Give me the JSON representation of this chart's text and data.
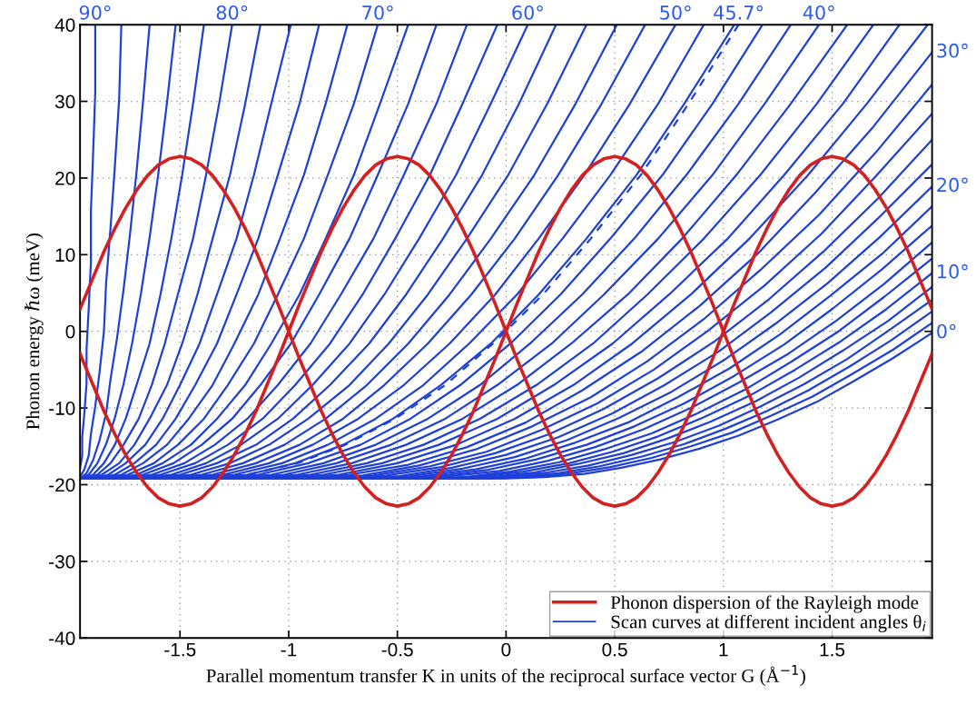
{
  "chart_data": {
    "type": "line",
    "xlabel": "Parallel momentum transfer K in units of the reciprocal surface vector G (Å$^{−1}$)",
    "ylabel": "Phonon energy ℏω (meV)",
    "xlim": [
      -1.96,
      1.96
    ],
    "ylim": [
      -40,
      40
    ],
    "xticks": [
      -1.5,
      -1,
      -0.5,
      0,
      0.5,
      1,
      1.5
    ],
    "yticks": [
      -40,
      -30,
      -20,
      -10,
      0,
      10,
      20,
      30,
      40
    ],
    "grid": true,
    "legend": "bottom right",
    "x": [
      -1.96,
      -1.95,
      -1.9,
      -1.85,
      -1.8,
      -1.75,
      -1.7,
      -1.65,
      -1.6,
      -1.55,
      -1.5,
      -1.45,
      -1.4,
      -1.35,
      -1.3,
      -1.25,
      -1.2,
      -1.15,
      -1.1,
      -1.05,
      -1,
      -0.95,
      -0.9,
      -0.85,
      -0.8,
      -0.75,
      -0.7,
      -0.65,
      -0.6,
      -0.55,
      -0.5,
      -0.45,
      -0.4,
      -0.35,
      -0.3,
      -0.25,
      -0.2,
      -0.15,
      -0.1,
      -0.05,
      0,
      0.05,
      0.1,
      0.15,
      0.2,
      0.25,
      0.3,
      0.35,
      0.4,
      0.45,
      0.5,
      0.55,
      0.6,
      0.65,
      0.7,
      0.75,
      0.8,
      0.85,
      0.9,
      0.95,
      1,
      1.05,
      1.1,
      1.15,
      1.2,
      1.25,
      1.3,
      1.35,
      1.4,
      1.45,
      1.5,
      1.55,
      1.6,
      1.65,
      1.7,
      1.75,
      1.8,
      1.85,
      1.9,
      1.95,
      1.96
    ],
    "annotations": [
      {
        "text": "90°",
        "x": -1.89,
        "y": 40
      },
      {
        "text": "80°",
        "x": -1.26,
        "y": 40
      },
      {
        "text": "70°",
        "x": -0.59,
        "y": 40
      },
      {
        "text": "60°",
        "x": 0.1,
        "y": 40
      },
      {
        "text": "50°",
        "x": 0.78,
        "y": 40
      },
      {
        "text": "45.7°",
        "x": 1.07,
        "y": 40
      },
      {
        "text": "40°",
        "x": 1.44,
        "y": 40
      },
      {
        "text": "30°",
        "x": 1.96,
        "y": 36.4
      },
      {
        "text": "20°",
        "x": 1.96,
        "y": 18.9
      },
      {
        "text": "10°",
        "x": 1.96,
        "y": 7.6
      },
      {
        "text": "0°",
        "x": 1.96,
        "y": -0.2
      }
    ],
    "series": [
      {
        "name": "Phonon dispersion of the Rayleigh mode",
        "color": "#d42020",
        "values": [
          2.9,
          3.6,
          7.0,
          10.4,
          13.4,
          16.1,
          18.4,
          20.3,
          21.7,
          22.5,
          22.8,
          22.5,
          21.7,
          20.3,
          18.4,
          16.1,
          13.4,
          10.4,
          7.0,
          3.6,
          0,
          -3.6,
          -7.0,
          -10.4,
          -13.4,
          -16.1,
          -18.4,
          -20.3,
          -21.7,
          -22.5,
          -22.8,
          -22.5,
          -21.7,
          -20.3,
          -18.4,
          -16.1,
          -13.4,
          -10.4,
          -7.0,
          -3.6,
          0,
          3.6,
          7.0,
          10.4,
          13.4,
          16.1,
          18.4,
          20.3,
          21.7,
          22.5,
          22.8,
          22.5,
          21.7,
          20.3,
          18.4,
          16.1,
          13.4,
          10.4,
          7.0,
          3.6,
          0,
          -3.6,
          -7.0,
          -10.4,
          -13.4,
          -16.1,
          -18.4,
          -20.3,
          -21.7,
          -22.5,
          -22.8,
          -22.5,
          -21.7,
          -20.3,
          -18.4,
          -16.1,
          -13.4,
          -10.4,
          -7.0,
          -3.6,
          -2.9
        ]
      },
      {
        "color": "#d42020",
        "values": [
          -2.9,
          -3.6,
          -7.0,
          -10.4,
          -13.4,
          -16.1,
          -18.4,
          -20.3,
          -21.7,
          -22.5,
          -22.8,
          -22.5,
          -21.7,
          -20.3,
          -18.4,
          -16.1,
          -13.4,
          -10.4,
          -7.0,
          -3.6,
          0,
          3.6,
          7.0,
          10.4,
          13.4,
          16.1,
          18.4,
          20.3,
          21.7,
          22.5,
          22.8,
          22.5,
          21.7,
          20.3,
          18.4,
          16.1,
          13.4,
          10.4,
          7.0,
          3.6,
          0,
          -3.6,
          -7.0,
          -10.4,
          -13.4,
          -16.1,
          -18.4,
          -20.3,
          -21.7,
          -22.5,
          -22.8,
          -22.5,
          -21.7,
          -20.3,
          -18.4,
          -16.1,
          -13.4,
          -10.4,
          -7.0,
          -3.6,
          0,
          3.6,
          7.0,
          10.4,
          13.4,
          16.1,
          18.4,
          20.3,
          21.7,
          22.5,
          22.8,
          22.5,
          21.7,
          20.3,
          18.4,
          16.1,
          13.4,
          10.4,
          7.0,
          3.6,
          2.9
        ]
      },
      {
        "name": "Scan curves at different incident angles θ$_{i}$",
        "color": "#1e3fd8",
        "x": [
          -1.96,
          -1.95,
          -1.95,
          -1.94,
          -1.93,
          -1.93,
          -1.92,
          -1.91,
          -1.91,
          -1.9,
          -1.89,
          -1.89
        ],
        "values": [
          -17.9,
          -16.2,
          -13.8,
          -10.7,
          -6.8,
          -2.3,
          3.0,
          9.0,
          15.6,
          23.0,
          31.2,
          40.0
        ]
      },
      {
        "color": "#1e3fd8",
        "x": [
          -1.96,
          -1.94,
          -1.92,
          -1.91,
          -1.89,
          -1.87,
          -1.85,
          -1.84,
          -1.82,
          -1.8,
          -1.78,
          -1.77
        ],
        "values": [
          -19.0,
          -18.0,
          -16.2,
          -13.4,
          -9.8,
          -5.3,
          0.0,
          6.3,
          13.4,
          21.4,
          30.3,
          40.0
        ]
      },
      {
        "color": "#1e3fd8",
        "x": [
          -1.96,
          -1.93,
          -1.9,
          -1.87,
          -1.84,
          -1.82,
          -1.79,
          -1.76,
          -1.73,
          -1.7,
          -1.67,
          -1.64
        ],
        "values": [
          -19.2,
          -18.5,
          -16.8,
          -14.2,
          -10.7,
          -6.3,
          -0.9,
          5.4,
          12.7,
          20.8,
          30.0,
          40.0
        ]
      },
      {
        "color": "#1e3fd8",
        "x": [
          -1.96,
          -1.92,
          -1.88,
          -1.84,
          -1.8,
          -1.76,
          -1.72,
          -1.68,
          -1.64,
          -1.6,
          -1.56,
          -1.52
        ],
        "values": [
          -19.2,
          -18.7,
          -17.2,
          -14.7,
          -11.3,
          -6.9,
          -1.5,
          4.9,
          12.2,
          20.5,
          29.8,
          40.0
        ]
      },
      {
        "color": "#1e3fd8",
        "x": [
          -1.96,
          -1.95,
          -1.9,
          -1.85,
          -1.8,
          -1.75,
          -1.7,
          -1.64,
          -1.59,
          -1.54,
          -1.49,
          -1.44,
          -1.39
        ],
        "values": [
          -19.2,
          -19.2,
          -18.7,
          -17.2,
          -14.8,
          -11.4,
          -7.0,
          -1.6,
          4.8,
          12.1,
          20.4,
          29.7,
          40.0
        ]
      },
      {
        "color": "#1e3fd8",
        "x": [
          -1.96,
          -1.94,
          -1.88,
          -1.82,
          -1.76,
          -1.69,
          -1.63,
          -1.57,
          -1.51,
          -1.44,
          -1.38,
          -1.32,
          -1.26
        ],
        "values": [
          -19.2,
          -19.2,
          -18.7,
          -17.2,
          -14.8,
          -11.4,
          -7.0,
          -1.6,
          4.8,
          12.1,
          20.4,
          29.7,
          40.0
        ]
      },
      {
        "color": "#1e3fd8",
        "x": [
          -1.96,
          -1.93,
          -1.86,
          -1.78,
          -1.71,
          -1.64,
          -1.56,
          -1.49,
          -1.42,
          -1.35,
          -1.27,
          -1.2,
          -1.13
        ],
        "values": [
          -19.2,
          -19.2,
          -18.7,
          -17.2,
          -14.8,
          -11.4,
          -7.0,
          -1.6,
          4.8,
          12.1,
          20.4,
          29.7,
          40.0
        ]
      },
      {
        "color": "#1e3fd8",
        "x": [
          -1.96,
          -1.91,
          -1.83,
          -1.75,
          -1.66,
          -1.58,
          -1.5,
          -1.41,
          -1.33,
          -1.24,
          -1.16,
          -1.08,
          -0.99
        ],
        "values": [
          -19.2,
          -19.2,
          -18.7,
          -17.2,
          -14.8,
          -11.4,
          -7.0,
          -1.6,
          4.8,
          12.1,
          20.4,
          29.7,
          40.0
        ]
      },
      {
        "color": "#1e3fd8",
        "x": [
          -1.96,
          -1.9,
          -1.8,
          -1.71,
          -1.61,
          -1.52,
          -1.43,
          -1.33,
          -1.24,
          -1.14,
          -1.05,
          -0.95,
          -0.86
        ],
        "values": [
          -19.2,
          -19.2,
          -18.7,
          -17.2,
          -14.8,
          -11.4,
          -7.0,
          -1.6,
          4.8,
          12.1,
          20.4,
          29.7,
          40.0
        ]
      },
      {
        "color": "#1e3fd8",
        "x": [
          -1.96,
          -1.88,
          -1.77,
          -1.67,
          -1.56,
          -1.46,
          -1.35,
          -1.25,
          -1.14,
          -1.04,
          -0.93,
          -0.83,
          -0.73
        ],
        "values": [
          -19.2,
          -19.2,
          -18.7,
          -17.2,
          -14.8,
          -11.4,
          -7.0,
          -1.6,
          4.8,
          12.1,
          20.4,
          29.7,
          40.0
        ]
      },
      {
        "color": "#1e3fd8",
        "x": [
          -1.96,
          -1.85,
          -1.74,
          -1.62,
          -1.51,
          -1.39,
          -1.28,
          -1.16,
          -1.05,
          -0.93,
          -0.82,
          -0.7,
          -0.59
        ],
        "values": [
          -19.2,
          -19.2,
          -18.7,
          -17.2,
          -14.8,
          -11.4,
          -7.0,
          -1.6,
          4.8,
          12.1,
          20.4,
          29.7,
          40.0
        ]
      },
      {
        "color": "#1e3fd8",
        "x": [
          -1.96,
          -1.83,
          -1.7,
          -1.58,
          -1.45,
          -1.33,
          -1.2,
          -1.08,
          -0.95,
          -0.83,
          -0.7,
          -0.58,
          -0.45
        ],
        "values": [
          -19.2,
          -19.2,
          -18.7,
          -17.2,
          -14.8,
          -11.4,
          -7.0,
          -1.6,
          4.8,
          12.1,
          20.4,
          29.7,
          40.0
        ]
      },
      {
        "color": "#1e3fd8",
        "x": [
          -1.96,
          -1.8,
          -1.67,
          -1.53,
          -1.4,
          -1.26,
          -1.13,
          -0.99,
          -0.86,
          -0.72,
          -0.59,
          -0.45,
          -0.32
        ],
        "values": [
          -19.2,
          -19.2,
          -18.7,
          -17.2,
          -14.8,
          -11.4,
          -7.0,
          -1.6,
          4.8,
          12.1,
          20.4,
          29.7,
          40.0
        ]
      },
      {
        "color": "#1e3fd8",
        "x": [
          -1.96,
          -1.77,
          -1.63,
          -1.48,
          -1.34,
          -1.19,
          -1.05,
          -0.9,
          -0.76,
          -0.61,
          -0.47,
          -0.32,
          -0.18
        ],
        "values": [
          -19.2,
          -19.2,
          -18.7,
          -17.2,
          -14.8,
          -11.4,
          -7.0,
          -1.6,
          4.8,
          12.1,
          20.4,
          29.7,
          40.0
        ]
      },
      {
        "color": "#1e3fd8",
        "x": [
          -1.96,
          -1.74,
          -1.59,
          -1.43,
          -1.28,
          -1.12,
          -0.97,
          -0.81,
          -0.66,
          -0.51,
          -0.35,
          -0.2,
          -0.04
        ],
        "values": [
          -19.2,
          -19.2,
          -18.7,
          -17.2,
          -14.8,
          -11.4,
          -7.0,
          -1.6,
          4.8,
          12.1,
          20.4,
          29.7,
          40.0
        ]
      },
      {
        "color": "#1e3fd8",
        "x": [
          -1.96,
          -1.71,
          -1.54,
          -1.38,
          -1.22,
          -1.05,
          -0.89,
          -0.72,
          -0.56,
          -0.4,
          -0.23,
          -0.07,
          0.1
        ],
        "values": [
          -19.2,
          -19.2,
          -18.7,
          -17.2,
          -14.8,
          -11.4,
          -7.0,
          -1.6,
          4.8,
          12.1,
          20.4,
          29.7,
          40.0
        ]
      },
      {
        "color": "#1e3fd8",
        "x": [
          -1.96,
          -1.67,
          -1.5,
          -1.33,
          -1.15,
          -0.98,
          -0.81,
          -0.63,
          -0.46,
          -0.29,
          -0.11,
          0.06,
          0.23
        ],
        "values": [
          -19.2,
          -19.2,
          -18.7,
          -17.2,
          -14.8,
          -11.4,
          -7.0,
          -1.6,
          4.8,
          12.1,
          20.4,
          29.7,
          40.0
        ]
      },
      {
        "color": "#1e3fd8",
        "x": [
          -1.96,
          -1.64,
          -1.45,
          -1.27,
          -1.09,
          -0.91,
          -0.72,
          -0.54,
          -0.36,
          -0.18,
          0.01,
          0.19,
          0.37
        ],
        "values": [
          -19.2,
          -19.2,
          -18.7,
          -17.2,
          -14.8,
          -11.4,
          -7.0,
          -1.6,
          4.8,
          12.1,
          20.4,
          29.7,
          40.0
        ]
      },
      {
        "color": "#1e3fd8",
        "x": [
          -1.96,
          -1.6,
          -1.4,
          -1.21,
          -1.02,
          -0.83,
          -0.64,
          -0.45,
          -0.26,
          -0.07,
          0.13,
          0.32,
          0.51
        ],
        "values": [
          -19.2,
          -19.2,
          -18.7,
          -17.2,
          -14.8,
          -11.4,
          -7.0,
          -1.6,
          4.8,
          12.1,
          20.4,
          29.7,
          40.0
        ]
      },
      {
        "color": "#1e3fd8",
        "x": [
          -1.96,
          -1.55,
          -1.35,
          -1.15,
          -0.95,
          -0.75,
          -0.56,
          -0.36,
          -0.16,
          0.04,
          0.24,
          0.44,
          0.64
        ],
        "values": [
          -19.2,
          -19.2,
          -18.7,
          -17.2,
          -14.8,
          -11.4,
          -7.0,
          -1.6,
          4.8,
          12.1,
          20.4,
          29.7,
          40.0
        ]
      },
      {
        "color": "#1e3fd8",
        "x": [
          -1.96,
          -1.51,
          -1.3,
          -1.09,
          -0.89,
          -0.68,
          -0.47,
          -0.26,
          -0.05,
          0.15,
          0.36,
          0.57,
          0.78
        ],
        "values": [
          -19.2,
          -19.2,
          -18.7,
          -17.2,
          -14.8,
          -11.4,
          -7.0,
          -1.6,
          4.8,
          12.1,
          20.4,
          29.7,
          40.0
        ]
      },
      {
        "color": "#1e3fd8",
        "x": [
          -1.96,
          -1.47,
          -1.25,
          -1.03,
          -0.82,
          -0.6,
          -0.38,
          -0.17,
          0.05,
          0.26,
          0.48,
          0.7,
          0.91
        ],
        "values": [
          -19.2,
          -19.2,
          -18.7,
          -17.2,
          -14.8,
          -11.4,
          -7.0,
          -1.6,
          4.8,
          12.1,
          20.4,
          29.7,
          40.0
        ]
      },
      {
        "color": "#1e3fd8",
        "x": [
          -1.96,
          -1.42,
          -1.19,
          -0.97,
          -0.75,
          -0.52,
          -0.3,
          -0.07,
          0.15,
          0.37,
          0.6,
          0.82,
          1.05
        ],
        "values": [
          -19.2,
          -19.2,
          -18.7,
          -17.2,
          -14.8,
          -11.4,
          -7.0,
          -1.6,
          4.8,
          12.1,
          20.4,
          29.7,
          40.0
        ]
      },
      {
        "color": "#1e3fd8",
        "line_style": "dashed",
        "x": [
          -1.41,
          -1.19,
          -0.96,
          -0.74,
          -0.51,
          -0.28,
          -0.06,
          0.17,
          0.39,
          0.62,
          0.84,
          1.07
        ],
        "values": [
          -19.2,
          -18.7,
          -17.2,
          -14.8,
          -11.4,
          -7.0,
          -1.6,
          4.8,
          12.1,
          20.4,
          29.7,
          40.0
        ]
      },
      {
        "color": "#1e3fd8",
        "x": [
          -1.96,
          -1.37,
          -1.14,
          -0.91,
          -0.67,
          -0.44,
          -0.21,
          0.02,
          0.25,
          0.48,
          0.72,
          0.95,
          1.18
        ],
        "values": [
          -19.2,
          -19.2,
          -18.7,
          -17.2,
          -14.8,
          -11.4,
          -7.0,
          -1.6,
          4.8,
          12.1,
          20.4,
          29.7,
          40.0
        ]
      },
      {
        "color": "#1e3fd8",
        "x": [
          -1.96,
          -1.32,
          -1.08,
          -0.84,
          -0.6,
          -0.36,
          -0.12,
          0.11,
          0.35,
          0.59,
          0.83,
          1.07,
          1.31
        ],
        "values": [
          -19.2,
          -19.2,
          -18.7,
          -17.2,
          -14.8,
          -11.4,
          -7.0,
          -1.6,
          4.8,
          12.1,
          20.4,
          29.7,
          40.0
        ]
      },
      {
        "color": "#1e3fd8",
        "x": [
          -1.96,
          -1.27,
          -1.02,
          -0.78,
          -0.53,
          -0.28,
          -0.04,
          0.21,
          0.45,
          0.7,
          0.95,
          1.19,
          1.44
        ],
        "values": [
          -19.2,
          -19.2,
          -18.7,
          -17.2,
          -14.8,
          -11.4,
          -7.0,
          -1.6,
          4.8,
          12.1,
          20.4,
          29.7,
          40.0
        ]
      },
      {
        "color": "#1e3fd8",
        "x": [
          -1.96,
          -1.21,
          -0.96,
          -0.71,
          -0.46,
          -0.2,
          0.05,
          0.3,
          0.56,
          0.81,
          1.06,
          1.31,
          1.57
        ],
        "values": [
          -19.2,
          -19.2,
          -18.7,
          -17.2,
          -14.8,
          -11.4,
          -7.0,
          -1.6,
          4.8,
          12.1,
          20.4,
          29.7,
          40.0
        ]
      },
      {
        "color": "#1e3fd8",
        "x": [
          -1.96,
          -1.16,
          -0.9,
          -0.64,
          -0.38,
          -0.12,
          0.14,
          0.4,
          0.65,
          0.91,
          1.17,
          1.43,
          1.69
        ],
        "values": [
          -19.2,
          -19.2,
          -18.7,
          -17.2,
          -14.8,
          -11.4,
          -7.0,
          -1.6,
          4.8,
          12.1,
          20.4,
          29.7,
          40.0
        ]
      },
      {
        "color": "#1e3fd8",
        "x": [
          -1.96,
          -1.1,
          -0.84,
          -0.57,
          -0.31,
          -0.04,
          0.22,
          0.49,
          0.75,
          1.02,
          1.28,
          1.55,
          1.81
        ],
        "values": [
          -19.2,
          -19.2,
          -18.7,
          -17.2,
          -14.8,
          -11.4,
          -7.0,
          -1.6,
          4.8,
          12.1,
          20.4,
          29.7,
          40.0
        ]
      },
      {
        "color": "#1e3fd8",
        "x": [
          -1.96,
          -1.05,
          -0.77,
          -0.5,
          -0.23,
          0.04,
          0.31,
          0.58,
          0.85,
          1.12,
          1.39,
          1.66,
          1.94
        ],
        "values": [
          -19.2,
          -19.2,
          -18.7,
          -17.2,
          -14.8,
          -11.4,
          -7.0,
          -1.6,
          4.8,
          12.1,
          20.4,
          29.7,
          40.0
        ]
      },
      {
        "color": "#1e3fd8",
        "x": [
          -1.96,
          -0.99,
          -0.72,
          -0.45,
          -0.18,
          0.09,
          0.35,
          0.62,
          0.89,
          1.16,
          1.42,
          1.69,
          1.96
        ],
        "values": [
          -19.2,
          -19.2,
          -18.7,
          -17.4,
          -15.1,
          -11.9,
          -7.7,
          -2.7,
          3.3,
          10.2,
          18.0,
          26.7,
          36.4
        ]
      },
      {
        "color": "#1e3fd8",
        "x": [
          -1.96,
          -0.93,
          -0.66,
          -0.4,
          -0.14,
          0.12,
          0.39,
          0.65,
          0.91,
          1.17,
          1.44,
          1.7,
          1.96
        ],
        "values": [
          -19.2,
          -19.2,
          -18.8,
          -17.5,
          -15.4,
          -12.4,
          -8.6,
          -3.9,
          1.6,
          8.0,
          15.2,
          23.3,
          32.2
        ]
      },
      {
        "color": "#1e3fd8",
        "x": [
          -1.96,
          -0.86,
          -0.61,
          -0.35,
          -0.09,
          0.16,
          0.42,
          0.68,
          0.93,
          1.19,
          1.45,
          1.7,
          1.96
        ],
        "values": [
          -19.2,
          -19.2,
          -18.8,
          -17.6,
          -15.7,
          -12.9,
          -9.4,
          -5.0,
          0.1,
          6.0,
          12.7,
          20.2,
          28.4
        ]
      },
      {
        "color": "#1e3fd8",
        "x": [
          -1.96,
          -0.8,
          -0.55,
          -0.3,
          -0.05,
          0.2,
          0.45,
          0.7,
          0.96,
          1.21,
          1.46,
          1.71,
          1.96
        ],
        "values": [
          -19.2,
          -19.2,
          -18.8,
          -17.7,
          -15.9,
          -13.4,
          -10.1,
          -6.1,
          -1.3,
          4.2,
          10.4,
          17.3,
          25.0
        ]
      },
      {
        "color": "#1e3fd8",
        "x": [
          -1.96,
          -0.74,
          -0.49,
          -0.25,
          0.0,
          0.24,
          0.49,
          0.73,
          0.98,
          1.22,
          1.47,
          1.71,
          1.96
        ],
        "values": [
          -19.2,
          -19.2,
          -18.9,
          -17.8,
          -16.1,
          -13.8,
          -10.7,
          -7.0,
          -2.6,
          2.5,
          8.3,
          14.7,
          21.8
        ]
      },
      {
        "color": "#1e3fd8",
        "x": [
          -1.96,
          -0.67,
          -0.44,
          -0.2,
          0.04,
          0.28,
          0.52,
          0.76,
          1.0,
          1.24,
          1.48,
          1.72,
          1.96
        ],
        "values": [
          -19.2,
          -19.2,
          -18.9,
          -17.9,
          -16.4,
          -14.2,
          -11.3,
          -7.9,
          -3.8,
          1.0,
          6.3,
          12.3,
          18.9
        ]
      },
      {
        "color": "#1e3fd8",
        "x": [
          -1.96,
          -0.61,
          -0.38,
          -0.14,
          0.09,
          0.32,
          0.56,
          0.79,
          1.03,
          1.26,
          1.49,
          1.73,
          1.96
        ],
        "values": [
          -19.2,
          -19.2,
          -18.9,
          -18.0,
          -16.6,
          -14.5,
          -11.9,
          -8.6,
          -4.8,
          -0.4,
          4.6,
          10.1,
          16.3
        ]
      },
      {
        "color": "#1e3fd8",
        "x": [
          -1.96,
          -0.54,
          -0.32,
          -0.09,
          0.14,
          0.37,
          0.59,
          0.82,
          1.05,
          1.28,
          1.5,
          1.73,
          1.96
        ],
        "values": [
          -19.2,
          -19.2,
          -18.9,
          -18.1,
          -16.7,
          -14.8,
          -12.4,
          -9.4,
          -5.8,
          -1.7,
          2.9,
          8.1,
          13.8
        ]
      },
      {
        "color": "#1e3fd8",
        "x": [
          -1.96,
          -0.48,
          -0.26,
          -0.03,
          0.19,
          0.41,
          0.63,
          0.85,
          1.07,
          1.3,
          1.52,
          1.74,
          1.96
        ],
        "values": [
          -19.2,
          -19.2,
          -18.9,
          -18.2,
          -16.9,
          -15.1,
          -12.8,
          -10.0,
          -6.7,
          -2.9,
          1.4,
          6.2,
          11.6
        ]
      },
      {
        "color": "#1e3fd8",
        "x": [
          -1.96,
          -0.41,
          -0.19,
          0.02,
          0.24,
          0.45,
          0.67,
          0.88,
          1.1,
          1.31,
          1.53,
          1.74,
          1.96
        ],
        "values": [
          -19.2,
          -19.2,
          -19.0,
          -18.3,
          -17.1,
          -15.4,
          -13.3,
          -10.7,
          -7.6,
          -4.0,
          0.0,
          4.5,
          9.5
        ]
      },
      {
        "color": "#1e3fd8",
        "x": [
          -1.96,
          -0.34,
          -0.13,
          0.08,
          0.29,
          0.49,
          0.7,
          0.91,
          1.12,
          1.33,
          1.54,
          1.75,
          1.96
        ],
        "values": [
          -19.2,
          -19.2,
          -19.0,
          -18.3,
          -17.2,
          -15.7,
          -13.7,
          -11.2,
          -8.4,
          -5.0,
          -1.3,
          2.9,
          7.6
        ]
      },
      {
        "color": "#1e3fd8",
        "x": [
          -1.96,
          -0.27,
          -0.07,
          0.13,
          0.33,
          0.54,
          0.74,
          0.94,
          1.15,
          1.35,
          1.55,
          1.76,
          1.96
        ],
        "values": [
          -19.2,
          -19.2,
          -19.0,
          -18.4,
          -17.3,
          -15.9,
          -14.0,
          -11.8,
          -9.1,
          -6.0,
          -2.5,
          1.4,
          5.8
        ]
      },
      {
        "color": "#1e3fd8",
        "x": [
          -1.96,
          -0.21,
          -0.01,
          0.19,
          0.38,
          0.58,
          0.78,
          0.98,
          1.17,
          1.37,
          1.57,
          1.76,
          1.96
        ],
        "values": [
          -19.2,
          -19.2,
          -19.0,
          -18.4,
          -17.5,
          -16.1,
          -14.4,
          -12.3,
          -9.8,
          -6.9,
          -3.6,
          0.1,
          4.1
        ]
      },
      {
        "color": "#1e3fd8",
        "x": [
          -1.96,
          -0.14,
          0.05,
          0.24,
          0.43,
          0.63,
          0.82,
          1.01,
          1.2,
          1.39,
          1.58,
          1.77,
          1.96
        ],
        "values": [
          -19.2,
          -19.2,
          -19.0,
          -18.5,
          -17.6,
          -16.3,
          -14.7,
          -12.7,
          -10.4,
          -7.7,
          -4.6,
          -1.2,
          2.6
        ]
      },
      {
        "color": "#1e3fd8",
        "x": [
          -1.96,
          -0.07,
          0.12,
          0.3,
          0.48,
          0.67,
          0.85,
          1.04,
          1.22,
          1.41,
          1.59,
          1.78,
          1.96
        ],
        "values": [
          -19.2,
          -19.2,
          -19.0,
          -18.5,
          -17.7,
          -16.5,
          -15.0,
          -13.2,
          -11.0,
          -8.5,
          -5.6,
          -2.4,
          1.1
        ]
      },
      {
        "color": "#1e3fd8",
        "x": [
          -1.96,
          0.0,
          0.18,
          0.36,
          0.53,
          0.71,
          0.89,
          1.07,
          1.25,
          1.43,
          1.6,
          1.78,
          1.96
        ],
        "values": [
          -19.2,
          -19.2,
          -19.0,
          -18.6,
          -17.8,
          -16.7,
          -15.3,
          -13.6,
          -11.5,
          -9.2,
          -6.5,
          -3.5,
          -0.2
        ]
      }
    ]
  }
}
